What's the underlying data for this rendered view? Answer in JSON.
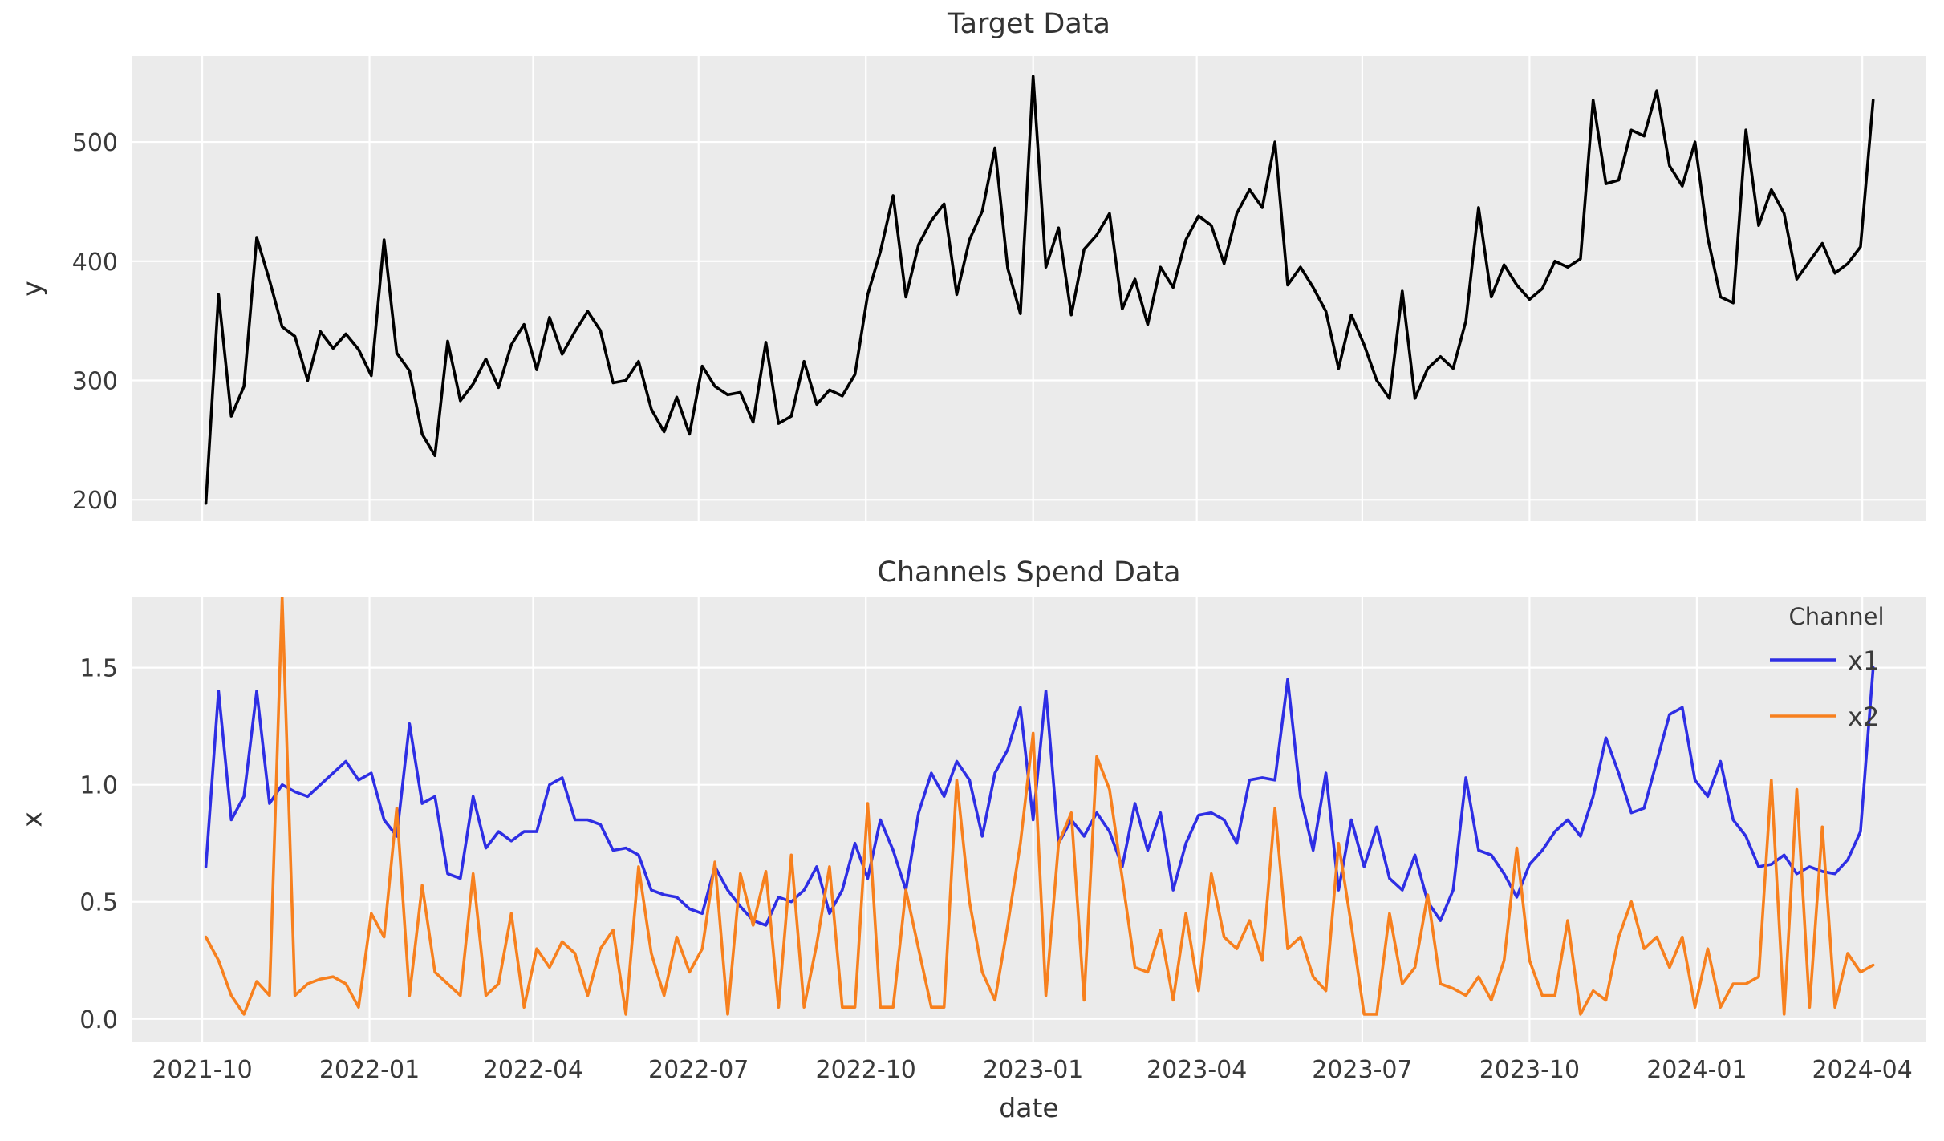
{
  "style": {
    "background": "#ffffff",
    "axes_background": "#ebebeb",
    "grid_color": "#ffffff",
    "text_color": "#3a3a3a",
    "black_line": "#000000",
    "blue_line": "#2e2ee4",
    "orange_line": "#f7801e"
  },
  "x_axis": {
    "xlabel": "date",
    "start_date": "2021-10-03",
    "freq_days": 7,
    "n_points": 132,
    "xlim_days": [
      -40.4,
      945.8
    ],
    "ticks": [
      {
        "label": "2021-10",
        "day": -2
      },
      {
        "label": "2022-01",
        "day": 90
      },
      {
        "label": "2022-04",
        "day": 180
      },
      {
        "label": "2022-07",
        "day": 271
      },
      {
        "label": "2022-10",
        "day": 363
      },
      {
        "label": "2023-01",
        "day": 455
      },
      {
        "label": "2023-04",
        "day": 545
      },
      {
        "label": "2023-07",
        "day": 636
      },
      {
        "label": "2023-10",
        "day": 728
      },
      {
        "label": "2024-01",
        "day": 820
      },
      {
        "label": "2024-04",
        "day": 911
      }
    ]
  },
  "chart_data": [
    {
      "type": "line",
      "title": "Target Data",
      "ylabel": "y",
      "grid": true,
      "legend_position": "none",
      "yticks": {
        "values": [
          200,
          300,
          400,
          500
        ],
        "labels": [
          "200",
          "300",
          "400",
          "500"
        ]
      },
      "ylim": [
        182,
        572
      ],
      "x_frequency": "weekly",
      "series": [
        {
          "name": "y",
          "color": "#000000",
          "values": [
            197,
            372,
            270,
            295,
            420,
            384,
            345,
            337,
            300,
            341,
            327,
            339,
            326,
            304,
            418,
            323,
            308,
            255,
            237,
            333,
            283,
            297,
            318,
            294,
            330,
            347,
            309,
            353,
            322,
            341,
            358,
            342,
            298,
            300,
            316,
            276,
            257,
            286,
            255,
            312,
            295,
            288,
            290,
            265,
            332,
            264,
            270,
            316,
            280,
            292,
            287,
            305,
            372,
            408,
            455,
            370,
            414,
            434,
            448,
            372,
            418,
            442,
            495,
            394,
            356,
            555,
            395,
            428,
            355,
            410,
            422,
            440,
            360,
            385,
            347,
            395,
            378,
            418,
            438,
            430,
            398,
            440,
            460,
            445,
            500,
            380,
            395,
            378,
            358,
            310,
            355,
            330,
            300,
            285,
            375,
            285,
            310,
            320,
            310,
            350,
            445,
            370,
            397,
            380,
            368,
            377,
            400,
            395,
            402,
            535,
            465,
            468,
            510,
            505,
            543,
            480,
            463,
            500,
            420,
            370,
            365,
            510,
            430,
            460,
            440,
            385,
            400,
            415,
            390,
            398,
            412,
            535
          ]
        }
      ]
    },
    {
      "type": "line",
      "title": "Channels Spend Data",
      "ylabel": "x",
      "xlabel": "date",
      "grid": true,
      "legend_position": "upper right",
      "legend": {
        "title": "Channel",
        "entries": [
          "x1",
          "x2"
        ]
      },
      "yticks": {
        "values": [
          0.0,
          0.5,
          1.0,
          1.5
        ],
        "labels": [
          "0.0",
          "0.5",
          "1.0",
          "1.5"
        ]
      },
      "ylim": [
        -0.1,
        1.8
      ],
      "x_frequency": "weekly",
      "series": [
        {
          "name": "x1",
          "color": "#2e2ee4",
          "values": [
            0.65,
            1.4,
            0.85,
            0.95,
            1.4,
            0.92,
            1.0,
            0.97,
            0.95,
            1.0,
            1.05,
            1.1,
            1.02,
            1.05,
            0.85,
            0.78,
            1.26,
            0.92,
            0.95,
            0.62,
            0.6,
            0.95,
            0.73,
            0.8,
            0.76,
            0.8,
            0.8,
            1.0,
            1.03,
            0.85,
            0.85,
            0.83,
            0.72,
            0.73,
            0.7,
            0.55,
            0.53,
            0.52,
            0.47,
            0.45,
            0.65,
            0.55,
            0.48,
            0.42,
            0.4,
            0.52,
            0.5,
            0.55,
            0.65,
            0.45,
            0.55,
            0.75,
            0.6,
            0.85,
            0.72,
            0.55,
            0.88,
            1.05,
            0.95,
            1.1,
            1.02,
            0.78,
            1.05,
            1.15,
            1.33,
            0.85,
            1.4,
            0.75,
            0.85,
            0.78,
            0.88,
            0.8,
            0.65,
            0.92,
            0.72,
            0.88,
            0.55,
            0.75,
            0.87,
            0.88,
            0.85,
            0.75,
            1.02,
            1.03,
            1.02,
            1.45,
            0.95,
            0.72,
            1.05,
            0.55,
            0.85,
            0.65,
            0.82,
            0.6,
            0.55,
            0.7,
            0.5,
            0.42,
            0.55,
            1.03,
            0.72,
            0.7,
            0.62,
            0.52,
            0.66,
            0.72,
            0.8,
            0.85,
            0.78,
            0.95,
            1.2,
            1.05,
            0.88,
            0.9,
            1.1,
            1.3,
            1.33,
            1.02,
            0.95,
            1.1,
            0.85,
            0.78,
            0.65,
            0.66,
            0.7,
            0.62,
            0.65,
            0.63,
            0.62,
            0.68,
            0.8,
            1.5
          ]
        },
        {
          "name": "x2",
          "color": "#f7801e",
          "values": [
            0.35,
            0.25,
            0.1,
            0.02,
            0.16,
            0.1,
            1.8,
            0.1,
            0.15,
            0.17,
            0.18,
            0.15,
            0.05,
            0.45,
            0.35,
            0.9,
            0.1,
            0.57,
            0.2,
            0.15,
            0.1,
            0.62,
            0.1,
            0.15,
            0.45,
            0.05,
            0.3,
            0.22,
            0.33,
            0.28,
            0.1,
            0.3,
            0.38,
            0.02,
            0.65,
            0.28,
            0.1,
            0.35,
            0.2,
            0.3,
            0.67,
            0.02,
            0.62,
            0.4,
            0.63,
            0.05,
            0.7,
            0.05,
            0.32,
            0.65,
            0.05,
            0.05,
            0.92,
            0.05,
            0.05,
            0.55,
            0.3,
            0.05,
            0.05,
            1.02,
            0.5,
            0.2,
            0.08,
            0.4,
            0.75,
            1.22,
            0.1,
            0.75,
            0.88,
            0.08,
            1.12,
            0.98,
            0.6,
            0.22,
            0.2,
            0.38,
            0.08,
            0.45,
            0.12,
            0.62,
            0.35,
            0.3,
            0.42,
            0.25,
            0.9,
            0.3,
            0.35,
            0.18,
            0.12,
            0.75,
            0.4,
            0.02,
            0.02,
            0.45,
            0.15,
            0.22,
            0.53,
            0.15,
            0.13,
            0.1,
            0.18,
            0.08,
            0.25,
            0.73,
            0.25,
            0.1,
            0.1,
            0.42,
            0.02,
            0.12,
            0.08,
            0.35,
            0.5,
            0.3,
            0.35,
            0.22,
            0.35,
            0.05,
            0.3,
            0.05,
            0.15,
            0.15,
            0.18,
            1.02,
            0.02,
            0.98,
            0.05,
            0.82,
            0.05,
            0.28,
            0.2,
            0.23
          ]
        }
      ]
    }
  ]
}
